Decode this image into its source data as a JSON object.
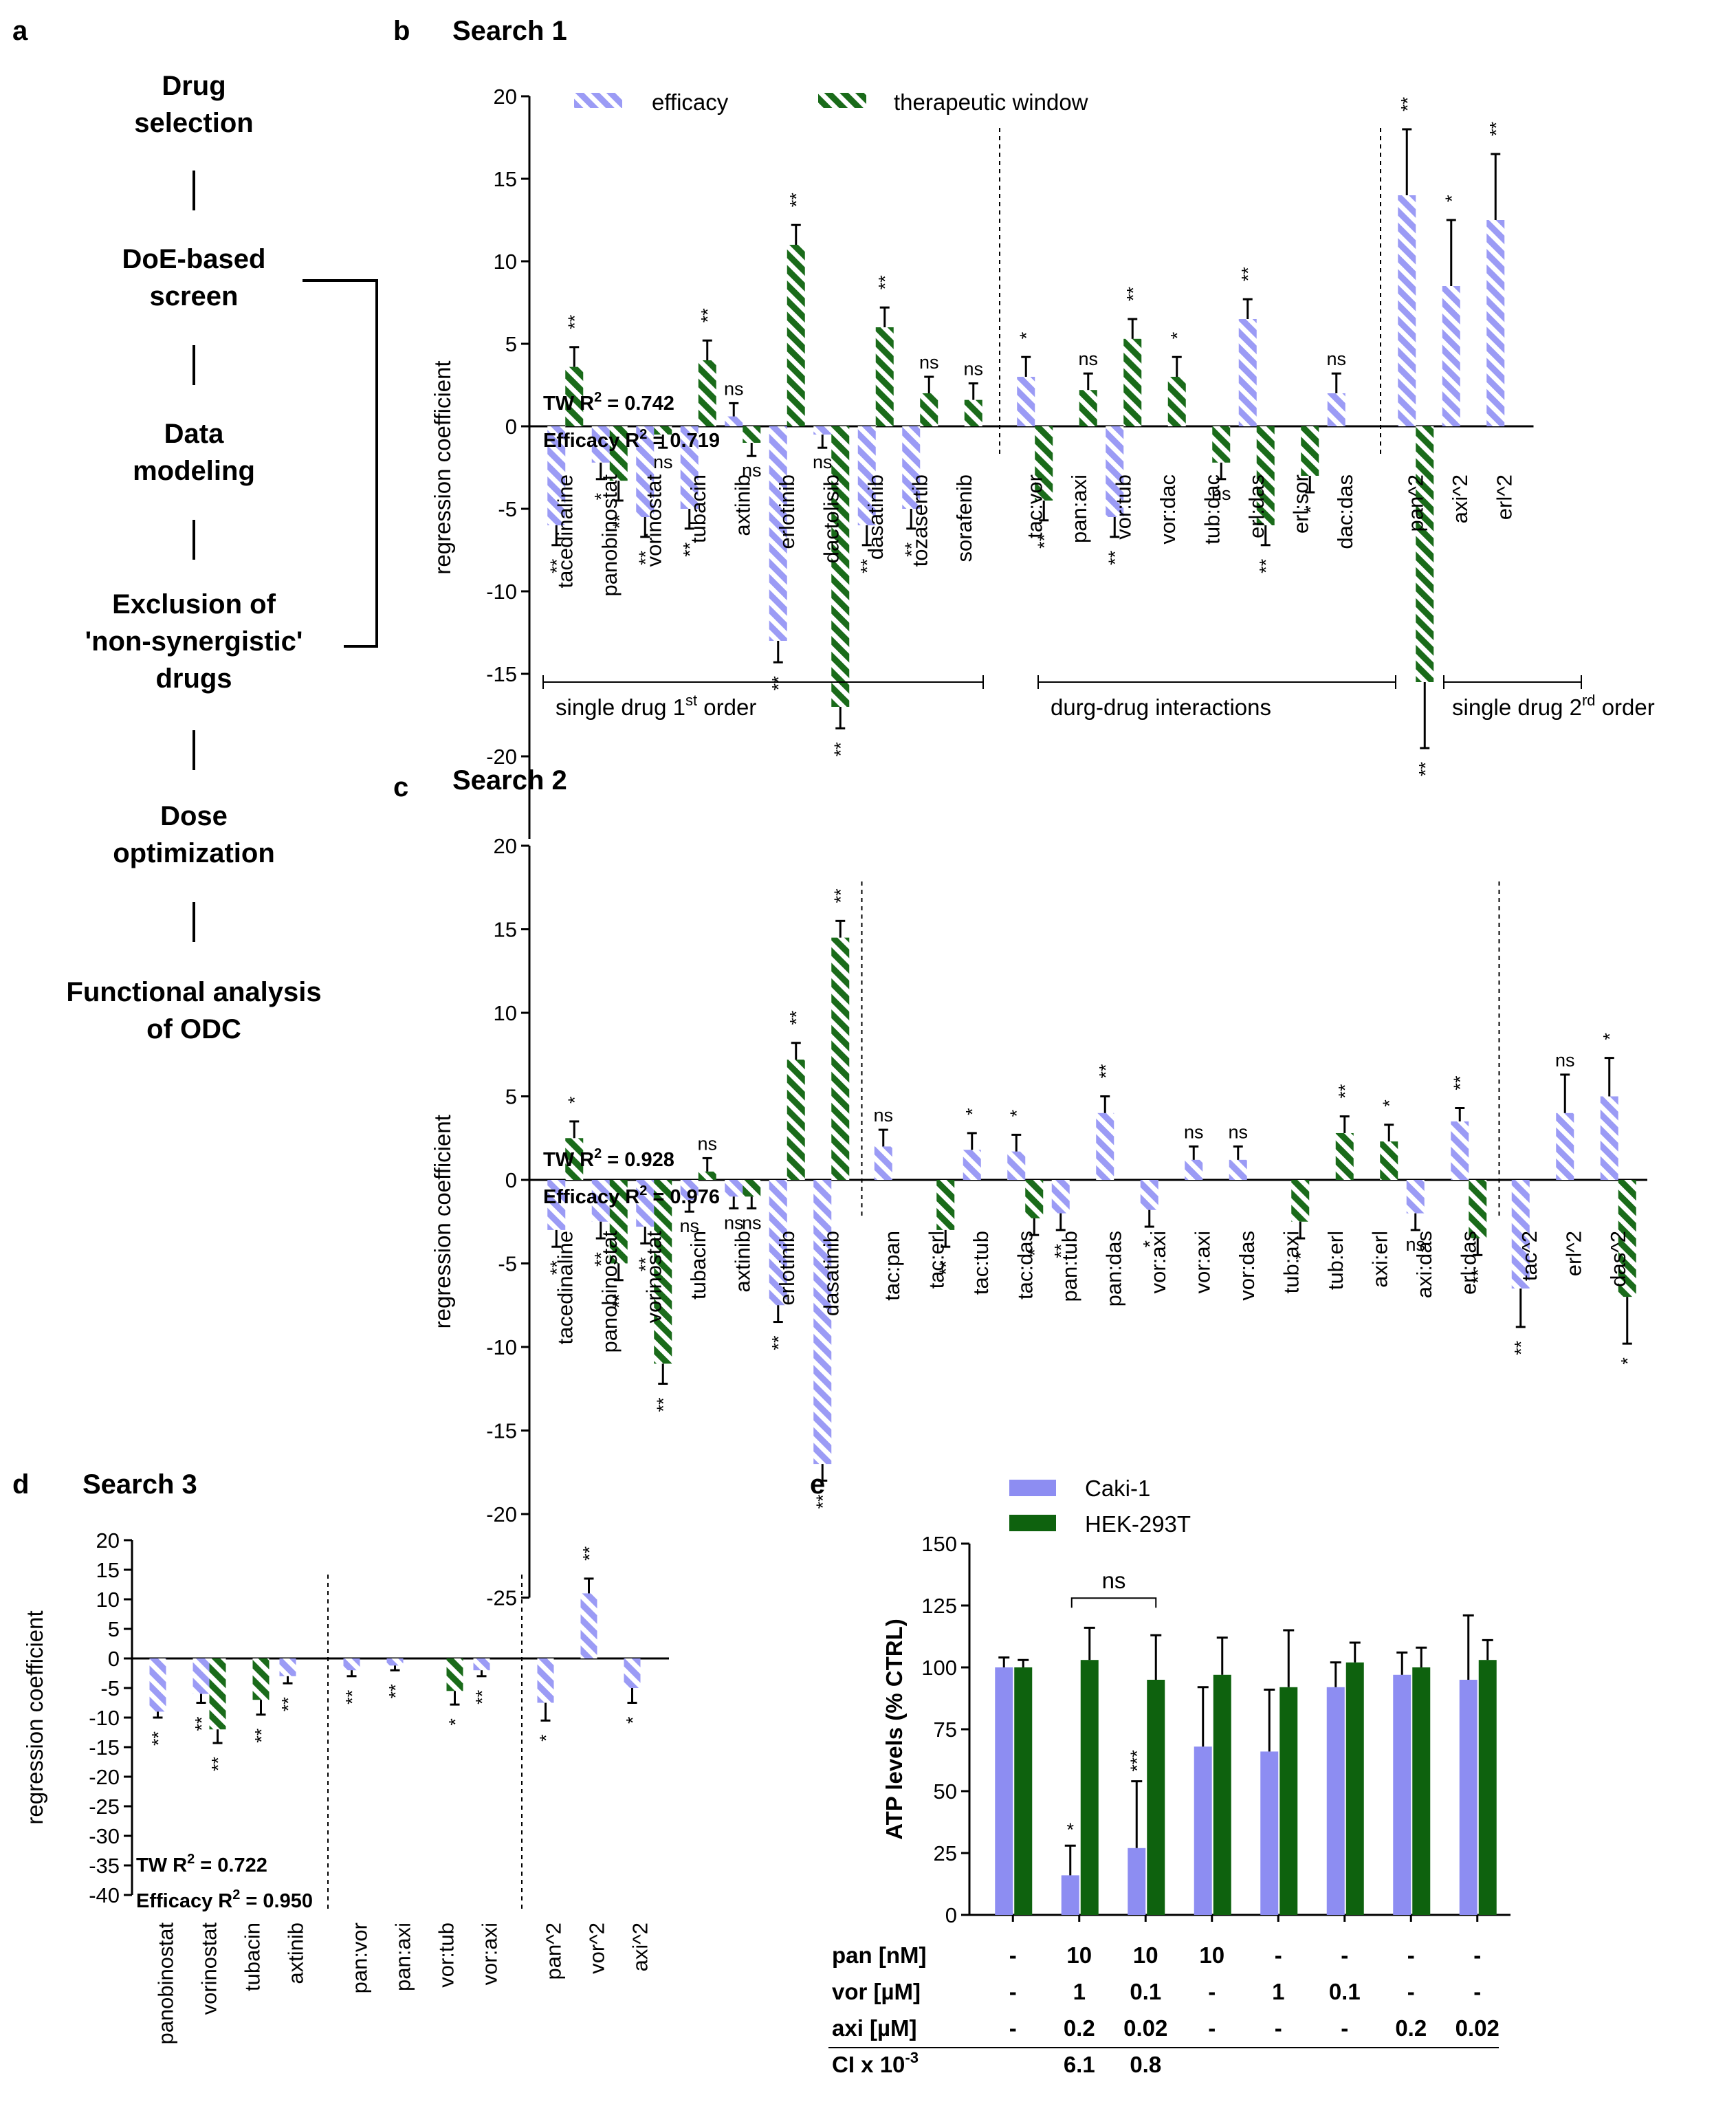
{
  "colors": {
    "efficacy": "#9b9bf5",
    "tw": "#1a6b1a",
    "caki": "#8d8df2",
    "hek": "#0e620e",
    "axis": "#000000"
  },
  "panels": {
    "a": "a",
    "b": "b",
    "c": "c",
    "d": "d",
    "e": "e"
  },
  "flow": {
    "steps": [
      [
        "Drug",
        "selection"
      ],
      [
        "DoE-based",
        "screen"
      ],
      [
        "Data",
        "modeling"
      ],
      [
        "Exclusion of",
        "'non-synergistic'",
        "drugs"
      ],
      [
        "Dose",
        "optimization"
      ],
      [
        "Functional analysis",
        "of ODC"
      ]
    ]
  },
  "legend": {
    "efficacy": "efficacy",
    "tw": "therapeutic window"
  },
  "ylabel": "regression coefficient",
  "group_labels": {
    "first": "single drug 1",
    "first_sup": "st",
    "first_suffix": " order",
    "interactions": "durg-drug interactions",
    "second": "single drug 2",
    "second_sup": "rd",
    "second_suffix": " order"
  },
  "chart_data": [
    {
      "id": "b",
      "type": "bar",
      "title": "Search 1",
      "ylim": [
        -25,
        20
      ],
      "yticks": [
        20,
        15,
        10,
        5,
        0,
        -5,
        -10,
        -15,
        -20
      ],
      "r2_tw": "TW R",
      "r2_tw_value": " = 0.742",
      "r2_eff": "Efficacy R",
      "r2_eff_value": " = 0.719",
      "series": [
        {
          "name": "efficacy"
        },
        {
          "name": "therapeutic window"
        }
      ],
      "groups": [
        {
          "items": [
            {
              "label": "tacedinaline",
              "eff": [
                -6,
                1.2,
                "**"
              ],
              "tw": [
                3.6,
                1.2,
                "**"
              ]
            },
            {
              "label": "panobinostat",
              "eff": [
                -2.2,
                1.0,
                "*"
              ],
              "tw": [
                -3.3,
                1.2,
                "**"
              ]
            },
            {
              "label": "vorinostat",
              "eff": [
                -5.5,
                1.2,
                "**"
              ],
              "tw": [
                -0.5,
                0.8,
                "ns"
              ]
            },
            {
              "label": "tubacin",
              "eff": [
                -5,
                1.2,
                "**"
              ],
              "tw": [
                4,
                1.2,
                "**"
              ]
            },
            {
              "label": "axtinib",
              "eff": [
                0.6,
                0.8,
                "ns"
              ],
              "tw": [
                -1,
                0.8,
                "ns"
              ]
            },
            {
              "label": "erlotinib",
              "eff": [
                -13,
                1.3,
                "**"
              ],
              "tw": [
                11,
                1.2,
                "**"
              ]
            },
            {
              "label": "dactolisib",
              "eff": [
                -0.5,
                0.8,
                "ns"
              ],
              "tw": [
                -17,
                1.3,
                "**"
              ]
            },
            {
              "label": "dasatinib",
              "eff": [
                -6,
                1.2,
                "**"
              ],
              "tw": [
                6,
                1.2,
                "**"
              ]
            },
            {
              "label": "tozasertib",
              "eff": [
                -5,
                1.2,
                "**"
              ],
              "tw": [
                2,
                1.0,
                "ns"
              ]
            },
            {
              "label": "sorafenib",
              "eff": null,
              "tw": [
                1.6,
                1.0,
                "ns"
              ]
            }
          ]
        },
        {
          "items": [
            {
              "label": "tac:vor",
              "eff": [
                3,
                1.2,
                "*"
              ],
              "tw": [
                -4.5,
                1.2,
                "**"
              ]
            },
            {
              "label": "pan:axi",
              "eff": null,
              "tw": [
                2.2,
                1.0,
                "ns"
              ]
            },
            {
              "label": "vor:tub",
              "eff": [
                -5.5,
                1.2,
                "**"
              ],
              "tw": [
                5.3,
                1.2,
                "**"
              ]
            },
            {
              "label": "vor:dac",
              "eff": null,
              "tw": [
                3,
                1.2,
                "*"
              ]
            },
            {
              "label": "tub:dac",
              "eff": null,
              "tw": [
                -2.2,
                1.0,
                "ns"
              ]
            },
            {
              "label": "erl:das",
              "eff": [
                6.5,
                1.2,
                "**"
              ],
              "tw": [
                -6,
                1.2,
                "**"
              ]
            },
            {
              "label": "erl:sor",
              "eff": null,
              "tw": [
                -3,
                1.0,
                "*"
              ]
            },
            {
              "label": "dac:das",
              "eff": [
                2,
                1.2,
                "ns"
              ],
              "tw": null
            }
          ]
        },
        {
          "items": [
            {
              "label": "pan^2",
              "eff": [
                14,
                4,
                "**"
              ],
              "tw": [
                -15.5,
                4,
                "**"
              ]
            },
            {
              "label": "axi^2",
              "eff": [
                8.5,
                4,
                "*"
              ],
              "tw": null
            },
            {
              "label": "erl^2",
              "eff": [
                12.5,
                4,
                "**"
              ],
              "tw": null
            }
          ]
        }
      ]
    },
    {
      "id": "c",
      "type": "bar",
      "title": "Search 2",
      "ylim": [
        -25,
        20
      ],
      "yticks": [
        20,
        15,
        10,
        5,
        0,
        -5,
        -10,
        -15,
        -20,
        -25
      ],
      "r2_tw": "TW R",
      "r2_tw_value": " = 0.928",
      "r2_eff": "Efficacy R",
      "r2_eff_value": " = 0.976",
      "series": [
        {
          "name": "efficacy"
        },
        {
          "name": "therapeutic window"
        }
      ],
      "groups": [
        {
          "items": [
            {
              "label": "tacedinaline",
              "eff": [
                -3,
                1.0,
                "**"
              ],
              "tw": [
                2.5,
                1.0,
                "*"
              ]
            },
            {
              "label": "panobinostat",
              "eff": [
                -2.5,
                1.0,
                "**"
              ],
              "tw": [
                -5,
                1.0,
                "**"
              ]
            },
            {
              "label": "vorinostat",
              "eff": [
                -2.8,
                1.0,
                "**"
              ],
              "tw": [
                -11,
                1.2,
                "**"
              ]
            },
            {
              "label": "tubacin",
              "eff": [
                -1.2,
                0.7,
                "ns"
              ],
              "tw": [
                0.5,
                0.8,
                "ns"
              ]
            },
            {
              "label": "axtinib",
              "eff": [
                -1,
                0.7,
                "ns"
              ],
              "tw": [
                -1,
                0.7,
                "ns"
              ]
            },
            {
              "label": "erlotinib",
              "eff": [
                -7.5,
                1.0,
                "**"
              ],
              "tw": [
                7.2,
                1.0,
                "**"
              ]
            },
            {
              "label": "dasatinib",
              "eff": [
                -17,
                1.0,
                "**"
              ],
              "tw": [
                14.5,
                1.0,
                "**"
              ]
            }
          ]
        },
        {
          "items": [
            {
              "label": "tac:pan",
              "eff": [
                2,
                1.0,
                "ns"
              ],
              "tw": null
            },
            {
              "label": "tac:erl",
              "eff": null,
              "tw": [
                -3,
                1.0,
                "**"
              ]
            },
            {
              "label": "tac:tub",
              "eff": [
                1.8,
                1.0,
                "*"
              ],
              "tw": null
            },
            {
              "label": "tac:das",
              "eff": [
                1.7,
                1.0,
                "*"
              ],
              "tw": [
                -2.3,
                1.0,
                "*"
              ]
            },
            {
              "label": "pan:tub",
              "eff": [
                -2,
                1.0,
                "**"
              ],
              "tw": null
            },
            {
              "label": "pan:das",
              "eff": [
                4,
                1.0,
                "**"
              ],
              "tw": null
            },
            {
              "label": "vor:axi",
              "eff": [
                -1.8,
                1.0,
                "*"
              ],
              "tw": null
            },
            {
              "label": "vor:axi",
              "eff": [
                1.2,
                0.8,
                "ns"
              ],
              "tw": null
            },
            {
              "label": "vor:das",
              "eff": [
                1.2,
                0.8,
                "ns"
              ],
              "tw": null
            },
            {
              "label": "tub:axi",
              "eff": null,
              "tw": [
                -2.5,
                1.0,
                "*"
              ]
            },
            {
              "label": "tub:erl",
              "eff": null,
              "tw": [
                2.8,
                1.0,
                "**"
              ]
            },
            {
              "label": "axi:erl",
              "eff": null,
              "tw": [
                2.3,
                1.0,
                "*"
              ]
            },
            {
              "label": "axi:das",
              "eff": [
                -2,
                1.0,
                "ns"
              ],
              "tw": null
            },
            {
              "label": "erl:das",
              "eff": [
                3.5,
                0.8,
                "**"
              ],
              "tw": [
                -3.5,
                1.0,
                "**"
              ]
            }
          ]
        },
        {
          "items": [
            {
              "label": "tac^2",
              "eff": [
                -6.5,
                2.3,
                "**"
              ],
              "tw": null
            },
            {
              "label": "erl^2",
              "eff": [
                4,
                2.3,
                "ns"
              ],
              "tw": null
            },
            {
              "label": "das^2",
              "eff": [
                5,
                2.3,
                "*"
              ],
              "tw": [
                -7,
                2.8,
                "*"
              ]
            }
          ]
        }
      ]
    },
    {
      "id": "d",
      "type": "bar",
      "title": "Search 3",
      "ylim": [
        -40,
        20
      ],
      "yticks": [
        20,
        15,
        10,
        5,
        0,
        -5,
        -10,
        -15,
        -20,
        -25,
        -30,
        -35,
        -40
      ],
      "r2_tw": "TW R",
      "r2_tw_value": " = 0.722",
      "r2_eff": "Efficacy R",
      "r2_eff_value": " = 0.950",
      "series": [
        {
          "name": "efficacy"
        },
        {
          "name": "therapeutic window"
        }
      ],
      "groups": [
        {
          "items": [
            {
              "label": "panobinostat",
              "eff": [
                -9,
                1.0,
                "**"
              ],
              "tw": null
            },
            {
              "label": "vorinostat",
              "eff": [
                -6,
                1.5,
                "**"
              ],
              "tw": [
                -12,
                2.3,
                "**"
              ]
            },
            {
              "label": "tubacin",
              "eff": null,
              "tw": [
                -7,
                2.5,
                "**"
              ]
            },
            {
              "label": "axtinib",
              "eff": [
                -3,
                1.2,
                "**"
              ],
              "tw": null
            }
          ]
        },
        {
          "items": [
            {
              "label": "pan:vor",
              "eff": [
                -2,
                1.0,
                "**"
              ],
              "tw": null
            },
            {
              "label": "pan:axi",
              "eff": [
                -1.2,
                0.8,
                "**"
              ],
              "tw": null
            },
            {
              "label": "vor:tub",
              "eff": null,
              "tw": [
                -5.5,
                2.3,
                "*"
              ]
            },
            {
              "label": "vor:axi",
              "eff": [
                -2,
                1.0,
                "**"
              ],
              "tw": null
            }
          ]
        },
        {
          "items": [
            {
              "label": "pan^2",
              "eff": [
                -7.5,
                3.0,
                "*"
              ],
              "tw": null
            },
            {
              "label": "vor^2",
              "eff": [
                11,
                2.5,
                "**"
              ],
              "tw": null
            },
            {
              "label": "axi^2",
              "eff": [
                -5,
                2.5,
                "*"
              ],
              "tw": null
            }
          ]
        }
      ]
    },
    {
      "id": "e",
      "type": "bar",
      "ylabel": "ATP levels (% CTRL)",
      "ylim": [
        0,
        150
      ],
      "yticks": [
        150,
        125,
        100,
        75,
        50,
        25,
        0
      ],
      "legend": [
        "Caki-1",
        "HEK-293T"
      ],
      "series": [
        {
          "name": "Caki-1",
          "values": [
            100,
            16,
            27,
            68,
            66,
            92,
            97,
            95
          ],
          "errors": [
            4,
            12,
            27,
            24,
            25,
            10,
            9,
            26
          ]
        },
        {
          "name": "HEK-293T",
          "values": [
            100,
            103,
            95,
            97,
            92,
            102,
            100,
            103
          ],
          "errors": [
            3,
            13,
            18,
            15,
            23,
            8,
            8,
            8
          ]
        }
      ],
      "caki_sig": [
        "",
        "*",
        "***",
        "",
        "",
        "",
        "",
        ""
      ],
      "bracket_label": "ns",
      "row_labels": [
        "pan [nM]",
        "vor [µM]",
        "axi [µM]",
        "CI x 10"
      ],
      "ci_exp": "-3",
      "rows": [
        [
          "-",
          "10",
          "10",
          "10",
          "-",
          "-",
          "-",
          "-"
        ],
        [
          "-",
          "1",
          "0.1",
          "-",
          "1",
          "0.1",
          "-",
          "-"
        ],
        [
          "-",
          "0.2",
          "0.02",
          "-",
          "-",
          "-",
          "0.2",
          "0.02"
        ],
        [
          "",
          "6.1",
          "0.8",
          "",
          "",
          "",
          "",
          ""
        ]
      ]
    }
  ]
}
